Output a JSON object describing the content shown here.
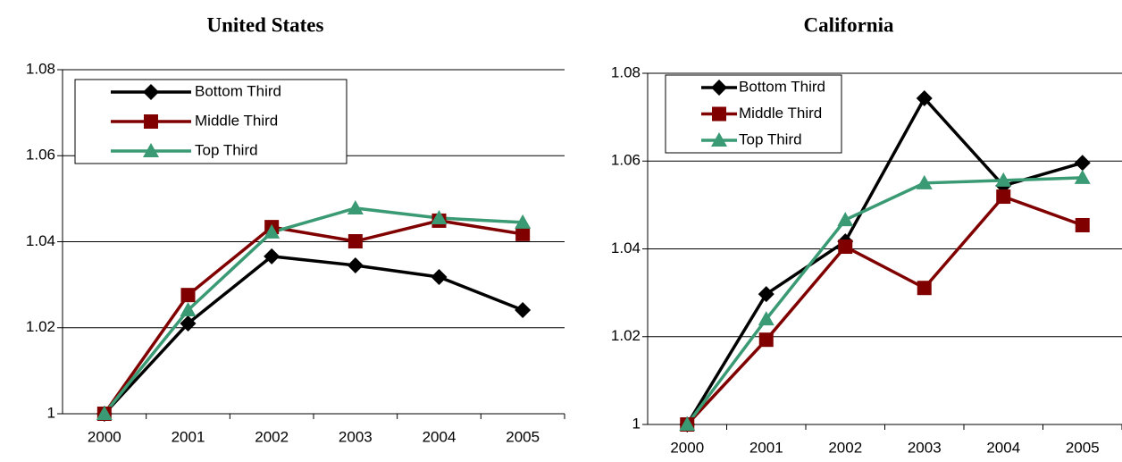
{
  "chart_data": [
    {
      "type": "line",
      "title": "United States",
      "categories": [
        "2000",
        "2001",
        "2002",
        "2003",
        "2004",
        "2005"
      ],
      "series": [
        {
          "name": "Bottom Third",
          "color": "#000000",
          "marker": "diamond",
          "values": [
            1.0,
            1.021,
            1.0366,
            1.0345,
            1.0318,
            1.0241
          ]
        },
        {
          "name": "Middle Third",
          "color": "#800000",
          "marker": "square",
          "values": [
            1.0,
            1.0276,
            1.0434,
            1.0401,
            1.0449,
            1.0418
          ]
        },
        {
          "name": "Top Third",
          "color": "#3a9a74",
          "marker": "triangle",
          "values": [
            1.0,
            1.0241,
            1.0422,
            1.0478,
            1.0455,
            1.0445
          ]
        }
      ],
      "ylim": [
        1,
        1.08
      ],
      "yticks": [
        1,
        1.02,
        1.04,
        1.06,
        1.08
      ],
      "grid": true,
      "legend": "top-left"
    },
    {
      "type": "line",
      "title": "California",
      "categories": [
        "2000",
        "2001",
        "2002",
        "2003",
        "2004",
        "2005"
      ],
      "series": [
        {
          "name": "Bottom Third",
          "color": "#000000",
          "marker": "diamond",
          "values": [
            1.0,
            1.0297,
            1.0417,
            1.0743,
            1.0544,
            1.0596
          ]
        },
        {
          "name": "Middle Third",
          "color": "#800000",
          "marker": "square",
          "values": [
            1.0,
            1.0193,
            1.0405,
            1.0311,
            1.0519,
            1.0454
          ]
        },
        {
          "name": "Top Third",
          "color": "#3a9a74",
          "marker": "triangle",
          "values": [
            1.0,
            1.024,
            1.0466,
            1.055,
            1.0556,
            1.0562
          ]
        }
      ],
      "ylim": [
        1,
        1.08
      ],
      "yticks": [
        1,
        1.02,
        1.04,
        1.06,
        1.08
      ],
      "grid": true,
      "legend": "top-left"
    }
  ]
}
